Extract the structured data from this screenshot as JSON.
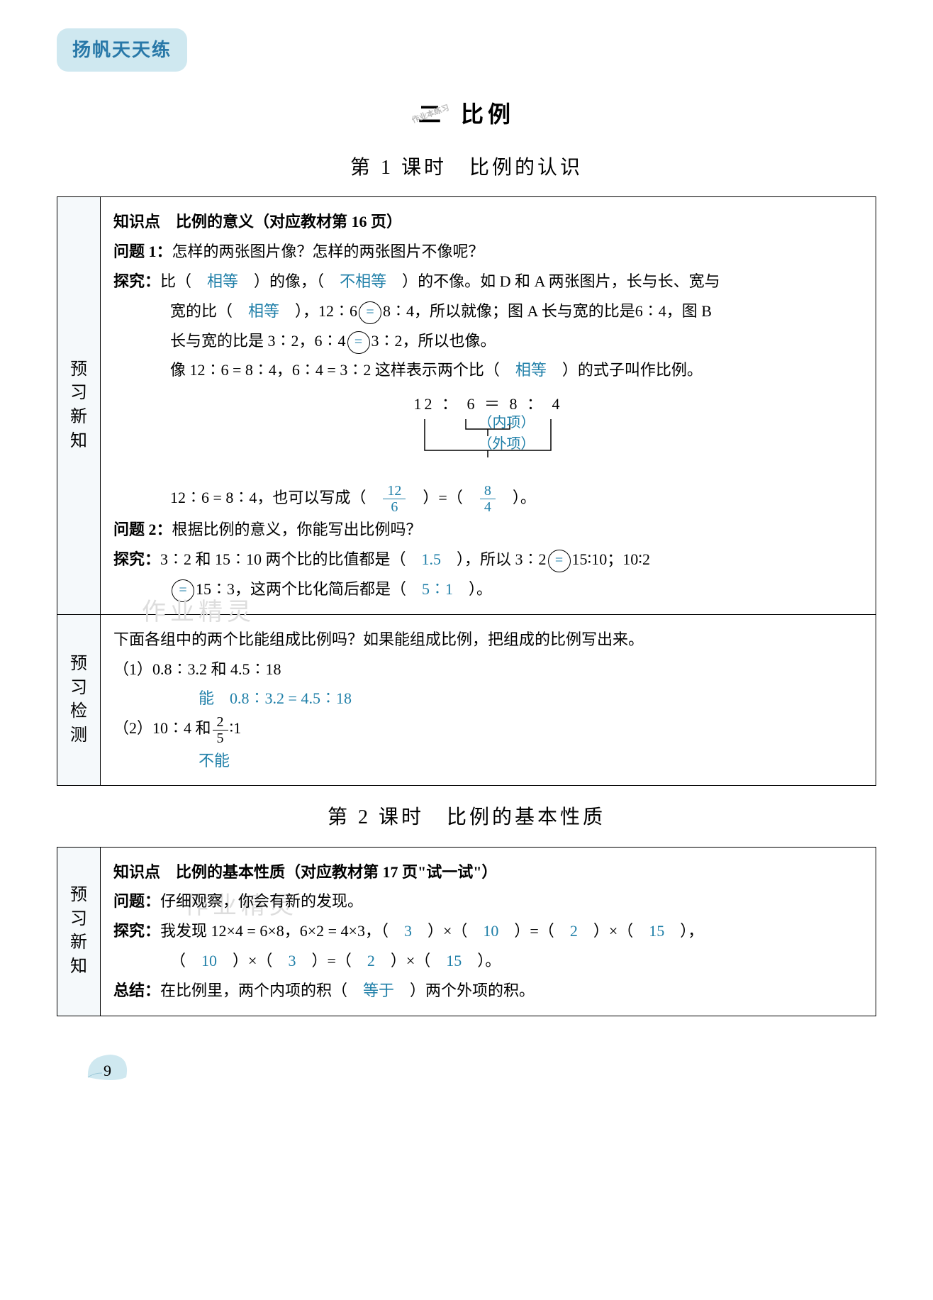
{
  "header_badge": "扬帆天天练",
  "chapter": {
    "num": "二",
    "title": "比例",
    "stamp": "作业本练习"
  },
  "lesson1": {
    "title": "第 1 课时　比例的认识",
    "side_preview": "预习新知",
    "side_check": "预习检测",
    "kp_heading": "知识点　比例的意义（对应教材第 16 页）",
    "q1_label": "问题 1：",
    "q1_text": "怎样的两张图片像？怎样的两张图片不像呢？",
    "explore_label": "探究：",
    "l1a": "比（　",
    "ans_equal1": "相等",
    "l1b": "　）的像，（　",
    "ans_neq": "不相等",
    "l1c": "　）的不像。如 D 和 A 两张图片，长与长、宽与",
    "l2a": "宽的比（　",
    "ans_equal2": "相等",
    "l2b": "　），12∶6",
    "circ_eq1": "=",
    "l2c": "8∶4，所以就像；图 A 长与宽的比是6∶4，图 B",
    "l3a": "长与宽的比是 3∶2，6∶4",
    "circ_eq2": "=",
    "l3b": "3∶2，所以也像。",
    "l4a": "像 12∶6 = 8∶4，6∶4 = 3∶2 这样表示两个比（　",
    "ans_equal3": "相等",
    "l4b": "　）的式子叫作比例。",
    "diagram": {
      "ratio": "12 ： 6 ＝ 8 ： 4",
      "inner": "（内项）",
      "outer": "（外项）"
    },
    "l5a": "12∶6 = 8∶4，也可以写成（　",
    "frac1": {
      "num": "12",
      "den": "6"
    },
    "l5b": "　）=（　",
    "frac2": {
      "num": "8",
      "den": "4"
    },
    "l5c": "　）。",
    "q2_label": "问题 2：",
    "q2_text": "根据比例的意义，你能写出比例吗？",
    "l6a": "3∶2 和 15∶10 两个比的比值都是（　",
    "ans_1_5": "1.5",
    "l6b": "　），所以 3∶2",
    "circ_eq3": "=",
    "l6c": "15∶10；10∶2",
    "circ_eq4": "=",
    "l7a": "15∶3，这两个比化简后都是（　",
    "ans_5_1": "5∶1",
    "l7b": "　）。",
    "check_intro": "下面各组中的两个比能组成比例吗？如果能组成比例，把组成的比例写出来。",
    "check1_q": "（1）0.8∶3.2 和 4.5∶18",
    "check1_a1": "能",
    "check1_a2": "0.8∶3.2 = 4.5∶18",
    "check2_q_a": "（2）10∶4 和",
    "check2_frac": {
      "num": "2",
      "den": "5"
    },
    "check2_q_b": "∶1",
    "check2_a": "不能",
    "watermark1": "作业精灵"
  },
  "lesson2": {
    "title": "第 2 课时　比例的基本性质",
    "side_preview": "预习新知",
    "kp_heading": "知识点　比例的基本性质（对应教材第 17 页\"试一试\"）",
    "q_label": "问题：",
    "q_text": "仔细观察，你会有新的发现。",
    "explore_label": "探究：",
    "e1a": "我发现 12×4 = 6×8，6×2 = 4×3，（　",
    "a1": "3",
    "e1b": "　）×（　",
    "a2": "10",
    "e1c": "　）=（　",
    "a3": "2",
    "e1d": "　）×（　",
    "a4": "15",
    "e1e": "　），",
    "e2a": "（　",
    "a5": "10",
    "e2b": "　）×（　",
    "a6": "3",
    "e2c": "　）=（　",
    "a7": "2",
    "e2d": "　）×（　",
    "a8": "15",
    "e2e": "　）。",
    "sum_label": "总结：",
    "sum_a": "在比例里，两个内项的积（　",
    "sum_ans": "等于",
    "sum_b": "　）两个外项的积。",
    "watermark": "作业精灵"
  },
  "page_number": "9",
  "colors": {
    "answer": "#1f7fa8",
    "badge_bg": "#cfe8f0",
    "badge_fg": "#2878a8",
    "leaf": "#cfe8f0"
  }
}
